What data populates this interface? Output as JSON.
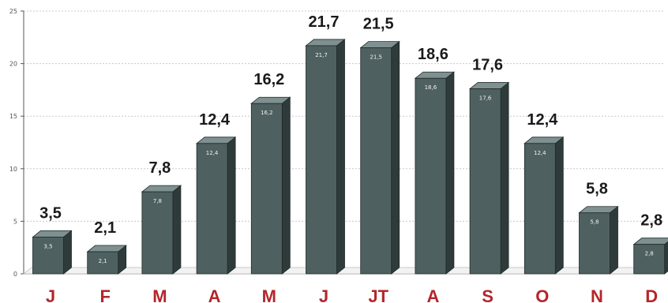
{
  "chart_data": {
    "type": "bar",
    "title": "",
    "xlabel": "",
    "ylabel": "",
    "ylim": [
      0,
      25
    ],
    "yticks": [
      0,
      5,
      10,
      15,
      20,
      25
    ],
    "grid": true,
    "categories": [
      "J",
      "F",
      "M",
      "A",
      "M",
      "J",
      "JT",
      "A",
      "S",
      "O",
      "N",
      "D"
    ],
    "values": [
      3.5,
      2.1,
      7.8,
      12.4,
      16.2,
      21.7,
      21.5,
      18.6,
      17.6,
      12.4,
      5.8,
      2.8
    ],
    "value_labels": [
      "3,5",
      "2,1",
      "7,8",
      "12,4",
      "16,2",
      "21,7",
      "21,5",
      "18,6",
      "17,6",
      "12,4",
      "5,8",
      "2,8"
    ],
    "colors": {
      "bar_front": "#4f6060",
      "bar_side": "#2f3b3b",
      "bar_top": "#7f9090",
      "category_text": "#b3262b",
      "value_text": "#1a1a1a",
      "grid": "#c8c8c8",
      "axis": "#555555"
    }
  }
}
